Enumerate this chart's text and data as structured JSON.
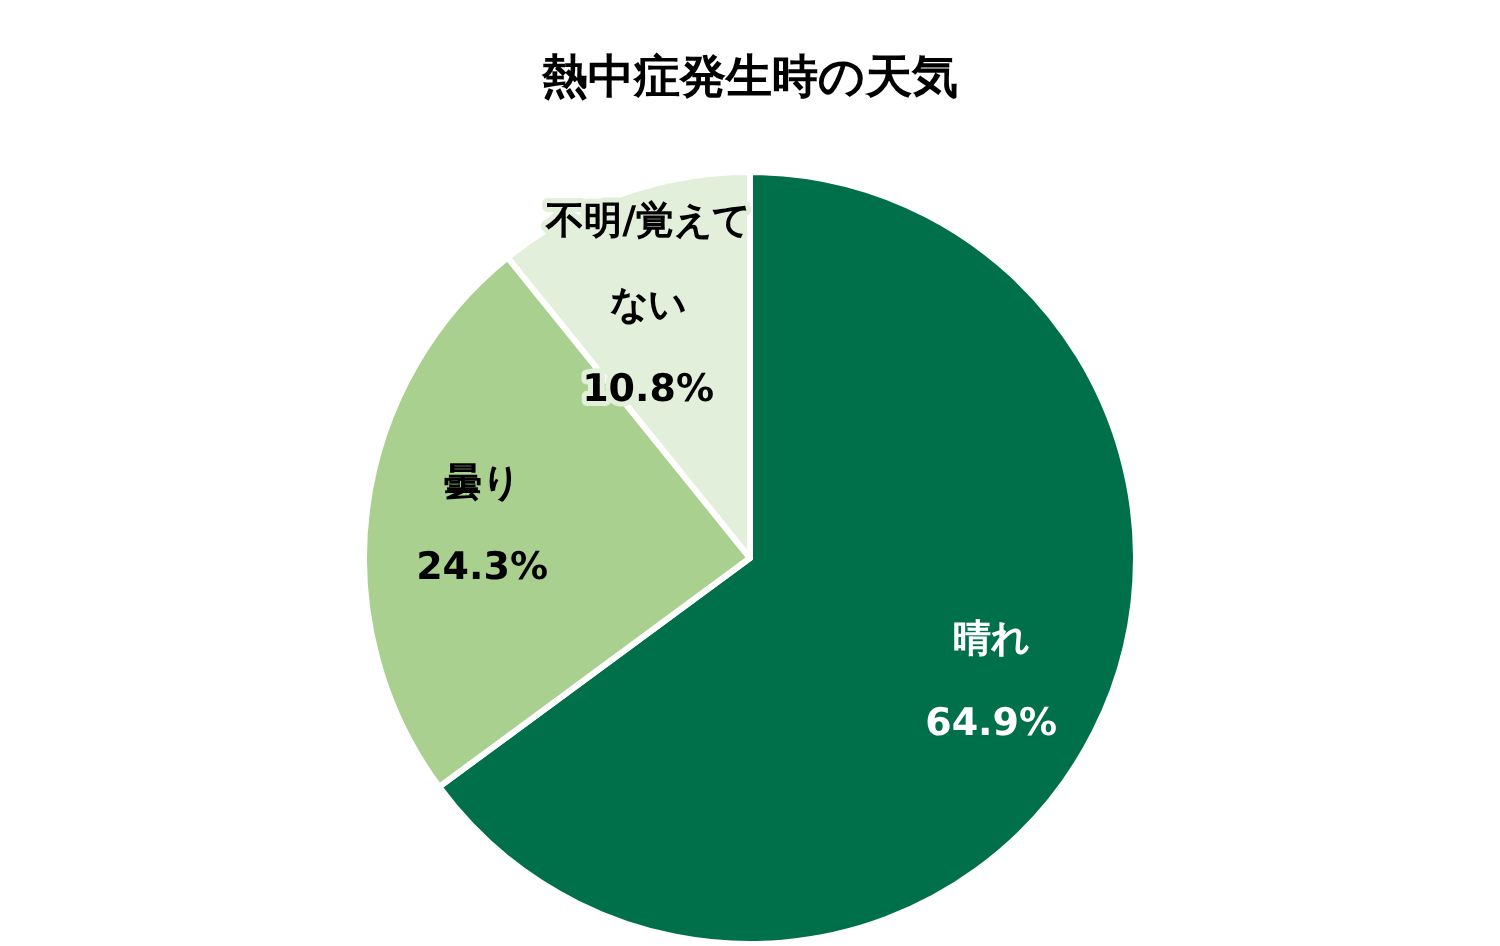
{
  "chart_data": {
    "type": "pie",
    "title": "熱中症発生時の天気",
    "categories": [
      "晴れ",
      "曇り",
      "不明/覚えてない"
    ],
    "values": [
      64.9,
      24.3,
      10.8
    ],
    "colors": [
      "#00704a",
      "#a9d08e",
      "#e2efda"
    ],
    "value_labels": [
      "64.9%",
      "24.3%",
      "10.8%"
    ]
  }
}
